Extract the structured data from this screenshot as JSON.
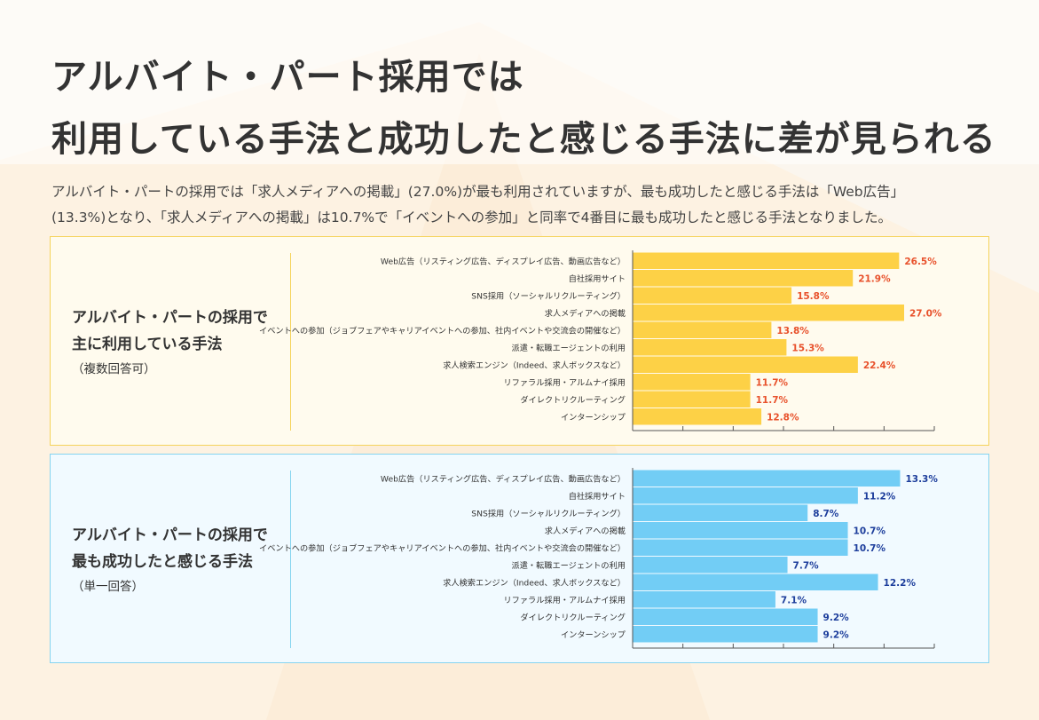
{
  "title": {
    "line1": "アルバイト・パート採用では",
    "line2": "利用している手法と成功したと感じる手法に差が見られる"
  },
  "description": {
    "line1": "アルバイト・パートの採用では「求人メディアへの掲載」(27.0%)が最も利用されていますが、最も成功したと感じる手法は「Web広告」",
    "line2": "(13.3%)となり、「求人メディアへの掲載」は10.7%で「イベントへの参加」と同率で4番目に最も成功したと感じる手法となりました。"
  },
  "colors": {
    "bar_used": "#fdd146",
    "label_used": "#e8512b",
    "bar_success": "#72cdf5",
    "label_success": "#1d3e9c",
    "axis": "#555555"
  },
  "chart_data": [
    {
      "type": "bar",
      "orientation": "horizontal",
      "title": "",
      "panel_label": [
        "アルバイト・パートの採用で",
        "主に利用している手法"
      ],
      "panel_note": "（複数回答可）",
      "categories": [
        "Web広告（リスティング広告、ディスプレイ広告、動画広告など）",
        "自社採用サイト",
        "SNS採用（ソーシャルリクルーティング）",
        "求人メディアへの掲載",
        "イベントへの参加（ジョブフェアやキャリアイベントへの参加、社内イベントや交流会の開催など）",
        "派遣・転職エージェントの利用",
        "求人検索エンジン（Indeed、求人ボックスなど）",
        "リファラル採用・アルムナイ採用",
        "ダイレクトリクルーティング",
        "インターンシップ"
      ],
      "values": [
        26.5,
        21.9,
        15.8,
        27.0,
        13.8,
        15.3,
        22.4,
        11.7,
        11.7,
        12.8
      ],
      "value_labels": [
        "26.5%",
        "21.9%",
        "15.8%",
        "27.0%",
        "13.8%",
        "15.3%",
        "22.4%",
        "11.7%",
        "11.7%",
        "12.8%"
      ],
      "unit": "%",
      "xlim": [
        0,
        30
      ],
      "xticks": [
        0,
        5,
        10,
        15,
        20,
        25,
        30
      ],
      "grid": false
    },
    {
      "type": "bar",
      "orientation": "horizontal",
      "title": "",
      "panel_label": [
        "アルバイト・パートの採用で",
        "最も成功したと感じる手法"
      ],
      "panel_note": "（単一回答）",
      "categories": [
        "Web広告（リスティング広告、ディスプレイ広告、動画広告など）",
        "自社採用サイト",
        "SNS採用（ソーシャルリクルーティング）",
        "求人メディアへの掲載",
        "イベントへの参加（ジョブフェアやキャリアイベントへの参加、社内イベントや交流会の開催など）",
        "派遣・転職エージェントの利用",
        "求人検索エンジン（Indeed、求人ボックスなど）",
        "リファラル採用・アルムナイ採用",
        "ダイレクトリクルーティング",
        "インターンシップ"
      ],
      "values": [
        13.3,
        11.2,
        8.7,
        10.7,
        10.7,
        7.7,
        12.2,
        7.1,
        9.2,
        9.2
      ],
      "value_labels": [
        "13.3%",
        "11.2%",
        "8.7%",
        "10.7%",
        "10.7%",
        "7.7%",
        "12.2%",
        "7.1%",
        "9.2%",
        "9.2%"
      ],
      "unit": "%",
      "xlim": [
        0,
        15
      ],
      "xticks": [
        0,
        2.5,
        5,
        7.5,
        10,
        12.5,
        15
      ],
      "grid": false
    }
  ]
}
